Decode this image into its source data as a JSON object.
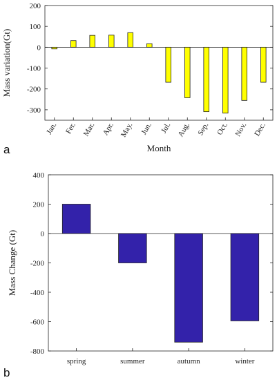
{
  "chart_data": [
    {
      "panel_label": "a",
      "type": "bar",
      "categories": [
        "Jan.",
        "Fer.",
        "Mar.",
        "Apr.",
        "May.",
        "Jun.",
        "Jul.",
        "Aug.",
        "Sep.",
        "Oct.",
        "Nov.",
        "Dec."
      ],
      "values": [
        -8,
        32,
        57,
        58,
        70,
        17,
        -168,
        -242,
        -309,
        -316,
        -255,
        -168
      ],
      "xlabel": "Month",
      "ylabel": "Mass variation(Gt)",
      "ylim": [
        -350,
        200
      ],
      "yticks": [
        -300,
        -200,
        -100,
        0,
        100,
        200
      ],
      "bar_color": "#ffff00",
      "grid": false
    },
    {
      "panel_label": "b",
      "type": "bar",
      "categories": [
        "spring",
        "summer",
        "autumn",
        "winter"
      ],
      "values": [
        200,
        -200,
        -740,
        -595
      ],
      "xlabel": "",
      "ylabel": "Mass Change (Gt)",
      "ylim": [
        -800,
        400
      ],
      "yticks": [
        -800,
        -600,
        -400,
        -200,
        0,
        200,
        400
      ],
      "bar_color": "#3322aa",
      "grid": false
    }
  ]
}
